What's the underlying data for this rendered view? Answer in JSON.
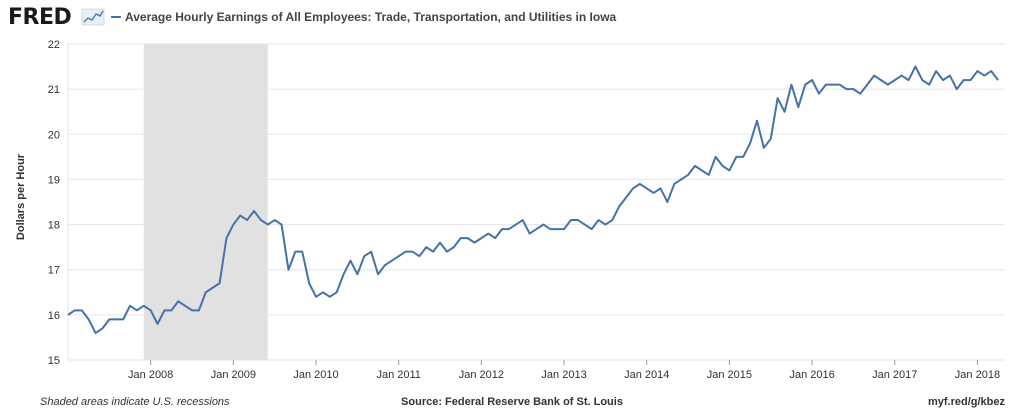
{
  "header": {
    "logo": "FRED",
    "title": "Average Hourly Earnings of All Employees: Trade, Transportation, and Utilities in Iowa"
  },
  "footer": {
    "note": "Shaded areas indicate U.S. recessions",
    "source": "Source: Federal Reserve Bank of St. Louis",
    "link": "myf.red/g/kbez"
  },
  "colors": {
    "line": "#4572a7",
    "recession": "#e1e1e1",
    "grid": "#e6e6e6",
    "background": "#ffffff"
  },
  "chart_data": {
    "type": "line",
    "ylabel": "Dollars per Hour",
    "ylim": [
      15,
      22
    ],
    "yticks": [
      "15",
      "16",
      "17",
      "18",
      "19",
      "20",
      "21",
      "22"
    ],
    "xlim": [
      "2007-01",
      "2018-05"
    ],
    "xticks": [
      {
        "date": "2008-01",
        "label": "Jan 2008"
      },
      {
        "date": "2009-01",
        "label": "Jan 2009"
      },
      {
        "date": "2010-01",
        "label": "Jan 2010"
      },
      {
        "date": "2011-01",
        "label": "Jan 2011"
      },
      {
        "date": "2012-01",
        "label": "Jan 2012"
      },
      {
        "date": "2013-01",
        "label": "Jan 2013"
      },
      {
        "date": "2014-01",
        "label": "Jan 2014"
      },
      {
        "date": "2015-01",
        "label": "Jan 2015"
      },
      {
        "date": "2016-01",
        "label": "Jan 2016"
      },
      {
        "date": "2017-01",
        "label": "Jan 2017"
      },
      {
        "date": "2018-01",
        "label": "Jan 2018"
      }
    ],
    "grid": true,
    "recessions": [
      {
        "start": "2007-12",
        "end": "2009-06"
      }
    ],
    "series": [
      {
        "start": "2007-01",
        "frequency": "monthly",
        "values": [
          16.0,
          16.1,
          16.1,
          15.9,
          15.6,
          15.7,
          15.9,
          15.9,
          15.9,
          16.2,
          16.1,
          16.2,
          16.1,
          15.8,
          16.1,
          16.1,
          16.3,
          16.2,
          16.1,
          16.1,
          16.5,
          16.6,
          16.7,
          17.7,
          18.0,
          18.2,
          18.1,
          18.3,
          18.1,
          18.0,
          18.1,
          18.0,
          17.0,
          17.4,
          17.4,
          16.7,
          16.4,
          16.5,
          16.4,
          16.5,
          16.9,
          17.2,
          16.9,
          17.3,
          17.4,
          16.9,
          17.1,
          17.2,
          17.3,
          17.4,
          17.4,
          17.3,
          17.5,
          17.4,
          17.6,
          17.4,
          17.5,
          17.7,
          17.7,
          17.6,
          17.7,
          17.8,
          17.7,
          17.9,
          17.9,
          18.0,
          18.1,
          17.8,
          17.9,
          18.0,
          17.9,
          17.9,
          17.9,
          18.1,
          18.1,
          18.0,
          17.9,
          18.1,
          18.0,
          18.1,
          18.4,
          18.6,
          18.8,
          18.9,
          18.8,
          18.7,
          18.8,
          18.5,
          18.9,
          19.0,
          19.1,
          19.3,
          19.2,
          19.1,
          19.5,
          19.3,
          19.2,
          19.5,
          19.5,
          19.8,
          20.3,
          19.7,
          19.9,
          20.8,
          20.5,
          21.1,
          20.6,
          21.1,
          21.2,
          20.9,
          21.1,
          21.1,
          21.1,
          21.0,
          21.0,
          20.9,
          21.1,
          21.3,
          21.2,
          21.1,
          21.2,
          21.3,
          21.2,
          21.5,
          21.2,
          21.1,
          21.4,
          21.2,
          21.3,
          21.0,
          21.2,
          21.2,
          21.4,
          21.3,
          21.4,
          21.2
        ]
      }
    ]
  }
}
